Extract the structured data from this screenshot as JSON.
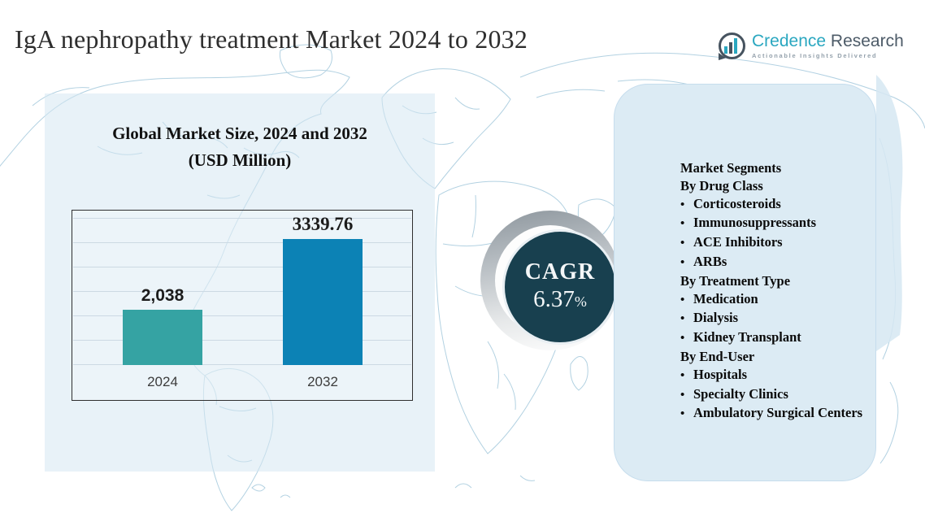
{
  "page": {
    "title": "IgA nephropathy treatment Market 2024 to 2032"
  },
  "logo": {
    "icon": "bar-chart-speech-bubble-icon",
    "brand_primary": "Credence",
    "brand_secondary": "Research",
    "tagline": "Actionable Insights Delivered",
    "colors": {
      "primary": "#2aa7c0",
      "secondary": "#4d5b68"
    }
  },
  "chart_data": {
    "type": "bar",
    "title": "Global Market Size, 2024 and 2032",
    "subtitle": "(USD Million)",
    "categories": [
      "2024",
      "2032"
    ],
    "values": [
      2038,
      3339.76
    ],
    "value_labels": [
      "2,038",
      "3339.76"
    ],
    "bar_colors": [
      "#35a3a3",
      "#0c82b5"
    ],
    "xlabel": "",
    "ylabel": "",
    "ylim": [
      0,
      4000
    ],
    "grid": true,
    "legend": false
  },
  "cagr": {
    "label": "CAGR",
    "value": "6.37",
    "percent_sign": "%",
    "circle_color": "#18404f"
  },
  "segments_panel": {
    "bullet": "•",
    "sections": [
      {
        "heading": "Market Segments",
        "items": []
      },
      {
        "heading": "By Drug Class",
        "items": [
          "Corticosteroids",
          "Immunosuppressants",
          "ACE Inhibitors",
          "ARBs"
        ]
      },
      {
        "heading": "By Treatment Type",
        "items": [
          "Medication",
          "Dialysis",
          "Kidney Transplant"
        ]
      },
      {
        "heading": "By End-User",
        "items": [
          "Hospitals",
          "Specialty Clinics",
          "Ambulatory Surgical Centers"
        ]
      }
    ]
  },
  "style_colors": {
    "map_line": "#aecfe0",
    "left_rect": "#d5e7f3",
    "right_panel": "#dcebf4"
  }
}
